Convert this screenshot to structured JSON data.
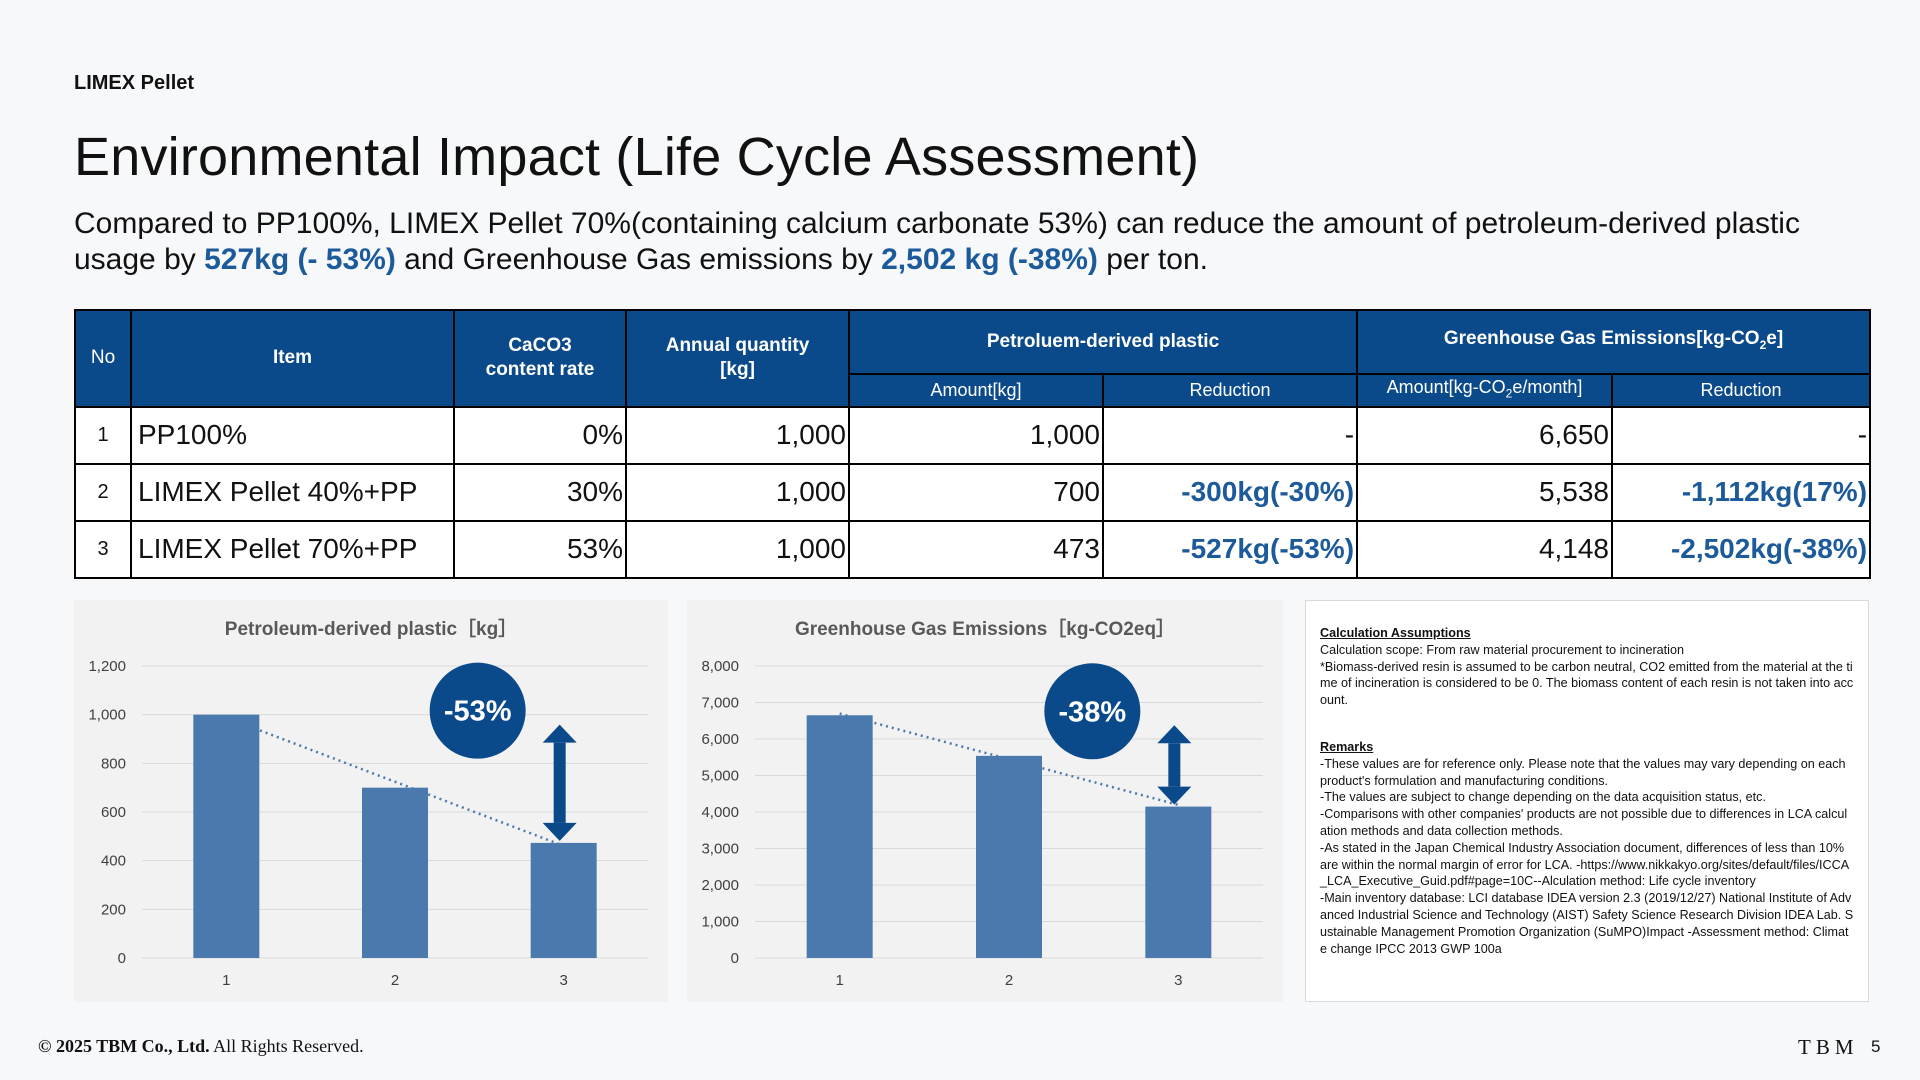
{
  "header": {
    "eyebrow": "LIMEX Pellet",
    "title": "Environmental Impact (Life Cycle Assessment)"
  },
  "lead": {
    "part1": "Compared to PP100%, LIMEX Pellet 70%(containing calcium carbonate 53%) can reduce the amount of petroleum-derived plastic usage by ",
    "hl1": "527kg (- 53%)",
    "part2": " and Greenhouse Gas emissions by ",
    "hl2": "2,502 kg (-38%)",
    "part3": " per ton."
  },
  "table": {
    "headers": {
      "no": "No",
      "item": "Item",
      "caco3_line1": "CaCO3",
      "caco3_line2": "content rate",
      "annual_line1": "Annual quantity",
      "annual_line2": "[kg]",
      "petro": "Petroluem-derived plastic",
      "ghg_prefix": "Greenhouse Gas Emissions[kg-CO",
      "ghg_sub": "2",
      "ghg_suffix": "e]",
      "amount": "Amount[kg]",
      "reduction": "Reduction",
      "amount_co2_prefix": "Amount[kg-CO",
      "amount_co2_sub": "2",
      "amount_co2_suffix": "e/month]",
      "reduction2": "Reduction"
    },
    "rows": [
      {
        "no": "1",
        "item": "PP100%",
        "caco3": "0%",
        "annual": "1,000",
        "petro_amount": "1,000",
        "petro_reduction": "-",
        "ghg_amount": "6,650",
        "ghg_reduction": "-"
      },
      {
        "no": "2",
        "item": "LIMEX Pellet 40%+PP",
        "caco3": "30%",
        "annual": "1,000",
        "petro_amount": "700",
        "petro_reduction": "-300kg(-30%)",
        "ghg_amount": "5,538",
        "ghg_reduction": "-1,112kg(17%)"
      },
      {
        "no": "3",
        "item": "LIMEX Pellet 70%+PP",
        "caco3": "53%",
        "annual": "1,000",
        "petro_amount": "473",
        "petro_reduction": "-527kg(-53%)",
        "ghg_amount": "4,148",
        "ghg_reduction": "-2,502kg(-38%)"
      }
    ]
  },
  "chart_data": [
    {
      "type": "bar",
      "title": "Petroleum-derived plastic［kg］",
      "categories": [
        "1",
        "2",
        "3"
      ],
      "values": [
        1000,
        700,
        473
      ],
      "ylim": [
        0,
        1200
      ],
      "yticks": [
        "0",
        "200",
        "400",
        "600",
        "800",
        "1,000",
        "1,200"
      ],
      "yticks_values": [
        0,
        200,
        400,
        600,
        800,
        1000,
        1200
      ],
      "trendline": "dotted linear",
      "badge": "-53%",
      "bar_color": "#4a7aad",
      "grid": true,
      "legend": "none"
    },
    {
      "type": "bar",
      "title": "Greenhouse Gas Emissions［kg-CO2eq］",
      "categories": [
        "1",
        "2",
        "3"
      ],
      "values": [
        6650,
        5538,
        4148
      ],
      "ylim": [
        0,
        8000
      ],
      "yticks": [
        "0",
        "1,000",
        "2,000",
        "3,000",
        "4,000",
        "5,000",
        "6,000",
        "7,000",
        "8,000"
      ],
      "yticks_values": [
        0,
        1000,
        2000,
        3000,
        4000,
        5000,
        6000,
        7000,
        8000
      ],
      "trendline": "dotted linear",
      "badge": "-38%",
      "bar_color": "#4a7aad",
      "grid": true,
      "legend": "none"
    }
  ],
  "notes": {
    "assumptions_title": "Calculation Assumptions",
    "assumptions_lines": [
      "Calculation scope: From raw material procurement to incineration",
      "*Biomass-derived resin is assumed to be carbon neutral, CO2 emitted from the material at the time of incineration is considered to be 0. The biomass content of each resin is not taken into account."
    ],
    "remarks_title": "Remarks",
    "remarks_lines": [
      "-These values are for reference only. Please note that the values may vary depending on each product's formulation and manufacturing conditions.",
      "-The values are subject to change depending on the data acquisition status, etc.",
      "-Comparisons with other companies' products are not possible due to differences in LCA calculation methods and data collection methods.",
      "-As stated in the Japan Chemical Industry Association document, differences of less than 10% are within the normal margin of error for LCA. -https://www.nikkakyo.org/sites/default/files/ICCA_LCA_Executive_Guid.pdf#page=10C--Alculation method: Life cycle inventory",
      "-Main inventory database: LCI database IDEA version 2.3 (2019/12/27)    National Institute of Advanced Industrial Science and Technology (AIST) Safety Science Research Division IDEA Lab.    Sustainable Management Promotion Organization (SuMPO)Impact -Assessment method: Climate change IPCC 2013 GWP 100a"
    ]
  },
  "footer": {
    "company": "© 2025 TBM Co., Ltd.",
    "rights": " All Rights Reserved.",
    "logo": "TBM",
    "page": "5"
  },
  "colors": {
    "header_blue": "#0b4a8a",
    "highlight_blue": "#1c5a9a",
    "bar": "#4a7aad",
    "badge": "#0b4a8a"
  }
}
